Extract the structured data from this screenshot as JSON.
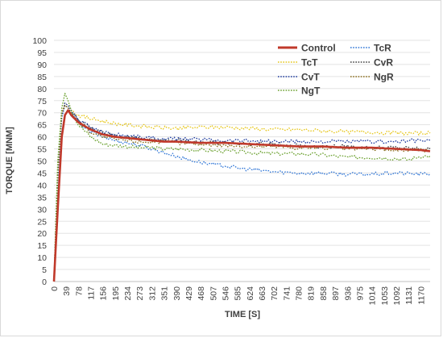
{
  "chart_data": {
    "type": "line",
    "xlabel": "TIME  [S]",
    "ylabel": "TORQUE [MNM]",
    "ylim": [
      0,
      100
    ],
    "xlim": [
      0,
      1200
    ],
    "y_ticks": [
      0,
      5,
      10,
      15,
      20,
      25,
      30,
      35,
      40,
      45,
      50,
      55,
      60,
      65,
      70,
      75,
      80,
      85,
      90,
      95,
      100
    ],
    "x_ticks": [
      "0",
      "39",
      "78",
      "117",
      "156",
      "195",
      "234",
      "273",
      "312",
      "351",
      "390",
      "429",
      "468",
      "507",
      "546",
      "585",
      "624",
      "663",
      "702",
      "741",
      "780",
      "819",
      "858",
      "897",
      "936",
      "975",
      "1014",
      "1053",
      "1092",
      "1131",
      "1170"
    ],
    "legend_position": "top-right",
    "grid": "horizontal",
    "series": [
      {
        "name": "Control",
        "color": "#c0392b",
        "style": "solid",
        "x": [
          0,
          12,
          25,
          35,
          45,
          55,
          78,
          117,
          156,
          195,
          234,
          273,
          312,
          351,
          390,
          468,
          546,
          624,
          702,
          780,
          858,
          936,
          1014,
          1092,
          1170,
          1200
        ],
        "y": [
          0,
          30,
          60,
          69,
          71,
          69,
          66,
          63,
          61,
          60,
          59.5,
          59,
          58.5,
          58,
          58,
          57.5,
          57.5,
          57,
          56.5,
          56,
          56,
          55.5,
          55.5,
          55,
          54.5,
          54
        ]
      },
      {
        "name": "TcR",
        "color": "#2e75d6",
        "style": "dotted",
        "x": [
          0,
          12,
          25,
          35,
          45,
          55,
          78,
          117,
          156,
          195,
          234,
          273,
          312,
          351,
          390,
          429,
          468,
          507,
          546,
          585,
          624,
          663,
          702,
          780,
          858,
          936,
          1014,
          1092,
          1170,
          1200
        ],
        "y": [
          0,
          42,
          68,
          73,
          72,
          70,
          66,
          62,
          60,
          58.5,
          57.5,
          56.5,
          55,
          53.5,
          52,
          50.5,
          49.5,
          48.5,
          48,
          47,
          46.5,
          46,
          45.5,
          45,
          45,
          44.5,
          44.5,
          45,
          44.5,
          44.5
        ]
      },
      {
        "name": "TcT",
        "color": "#e6c619",
        "style": "dotted",
        "x": [
          0,
          12,
          25,
          35,
          45,
          55,
          78,
          117,
          156,
          195,
          234,
          273,
          312,
          390,
          468,
          546,
          624,
          702,
          780,
          858,
          936,
          1014,
          1092,
          1170,
          1200
        ],
        "y": [
          0,
          48,
          70,
          74,
          73,
          71,
          69,
          67.5,
          66.5,
          65.5,
          65,
          64.5,
          64,
          63.5,
          64,
          64,
          63.5,
          63,
          63,
          62.5,
          62,
          62,
          61.5,
          61.5,
          61.5
        ]
      },
      {
        "name": "CvR",
        "color": "#404040",
        "style": "dotted",
        "x": [
          0,
          12,
          25,
          35,
          45,
          55,
          78,
          117,
          156,
          195,
          234,
          273,
          312,
          390,
          468,
          546,
          624,
          702,
          780,
          858,
          936,
          1014,
          1092,
          1170,
          1200
        ],
        "y": [
          0,
          45,
          69,
          73,
          72,
          70,
          67,
          63.5,
          61.5,
          60.5,
          60,
          59.5,
          59,
          58.5,
          58,
          57.5,
          57,
          57,
          56.5,
          56,
          56,
          55.5,
          55.5,
          55,
          55
        ]
      },
      {
        "name": "CvT",
        "color": "#1f3c9e",
        "style": "dotted",
        "x": [
          0,
          12,
          25,
          35,
          45,
          55,
          78,
          117,
          156,
          195,
          234,
          273,
          312,
          390,
          468,
          546,
          624,
          702,
          780,
          858,
          936,
          1014,
          1092,
          1170,
          1200
        ],
        "y": [
          0,
          45,
          69,
          74,
          73,
          71,
          67,
          64,
          62,
          61,
          60.5,
          60,
          59.5,
          59,
          59,
          58.5,
          58.5,
          58,
          58,
          58,
          58,
          58,
          58,
          58.5,
          58.5
        ]
      },
      {
        "name": "NgR",
        "color": "#8a6d1c",
        "style": "dotted",
        "x": [
          0,
          12,
          25,
          35,
          45,
          55,
          78,
          117,
          156,
          195,
          234,
          273,
          312,
          390,
          468,
          546,
          624,
          702,
          780,
          858,
          936,
          1014,
          1092,
          1170,
          1200
        ],
        "y": [
          0,
          46,
          70,
          73,
          72,
          70,
          66,
          62,
          60,
          59,
          58.5,
          58,
          58,
          57.5,
          57,
          56.5,
          56,
          56,
          55.5,
          55.5,
          55,
          55,
          54.5,
          54.5,
          54
        ]
      },
      {
        "name": "NgT",
        "color": "#6aa02e",
        "style": "dotted",
        "x": [
          0,
          12,
          25,
          35,
          45,
          55,
          78,
          117,
          156,
          195,
          234,
          273,
          312,
          351,
          390,
          468,
          546,
          624,
          702,
          780,
          858,
          936,
          1014,
          1092,
          1131,
          1170,
          1200
        ],
        "y": [
          0,
          50,
          72,
          78,
          75,
          71,
          65,
          60,
          57,
          56.5,
          56,
          55.5,
          55.5,
          55,
          55,
          54.5,
          54,
          53.5,
          53,
          53,
          52.5,
          51.5,
          51.5,
          51,
          50.5,
          52,
          52
        ]
      }
    ]
  }
}
